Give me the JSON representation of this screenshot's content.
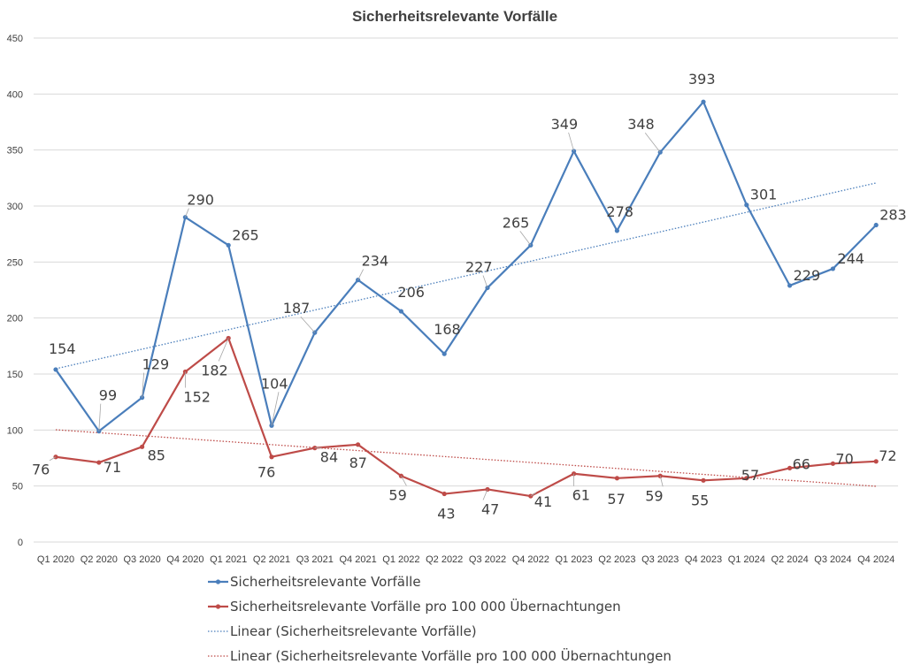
{
  "chart_data": {
    "type": "line",
    "title": "Sicherheitsrelevante Vorfälle",
    "categories": [
      "Q1 2020",
      "Q2 2020",
      "Q3 2020",
      "Q4 2020",
      "Q1 2021",
      "Q2 2021",
      "Q3 2021",
      "Q4 2021",
      "Q1 2022",
      "Q2 2022",
      "Q3 2022",
      "Q4 2022",
      "Q1 2023",
      "Q2 2023",
      "Q3 2023",
      "Q4 2023",
      "Q1 2024",
      "Q2 2024",
      "Q3 2024",
      "Q4 2024"
    ],
    "ylim": [
      0,
      450
    ],
    "yticks": [
      0,
      50,
      100,
      150,
      200,
      250,
      300,
      350,
      400,
      450
    ],
    "grid": true,
    "legend_position": "bottom",
    "series": [
      {
        "name": "Sicherheitsrelevante Vorfälle",
        "color": "#4a7ebb",
        "values": [
          154,
          99,
          129,
          290,
          265,
          104,
          187,
          234,
          206,
          168,
          227,
          265,
          349,
          278,
          348,
          393,
          301,
          229,
          244,
          283
        ],
        "data_labels": [
          "154",
          "99",
          "129",
          "290",
          "265",
          "104",
          "187",
          "234",
          "206",
          "168",
          "227",
          "265",
          "349",
          "278",
          "348",
          "393",
          "301",
          "229",
          "244",
          "283"
        ]
      },
      {
        "name": "Sicherheitsrelevante Vorfälle pro 100 000 Übernachtungen",
        "color": "#be4b48",
        "values": [
          76,
          71,
          85,
          152,
          182,
          76,
          84,
          87,
          59,
          43,
          47,
          41,
          61,
          57,
          59,
          55,
          57,
          66,
          70,
          72
        ],
        "data_labels": [
          "76",
          "71",
          "85",
          "152",
          "182",
          "76",
          "84",
          "87",
          "59",
          "43",
          "47",
          "41",
          "61",
          "57",
          "59",
          "55",
          "57",
          "66",
          "70",
          "72"
        ]
      }
    ],
    "trendlines": [
      {
        "name": "Linear (Sicherheitsrelevante Vorfälle)",
        "color": "#4a7ebb",
        "style": "dotted",
        "of_series": 0
      },
      {
        "name": "Linear (Sicherheitsrelevante Vorfälle pro 100 000 Übernachtungen",
        "color": "#be4b48",
        "style": "dotted",
        "of_series": 1
      }
    ]
  }
}
